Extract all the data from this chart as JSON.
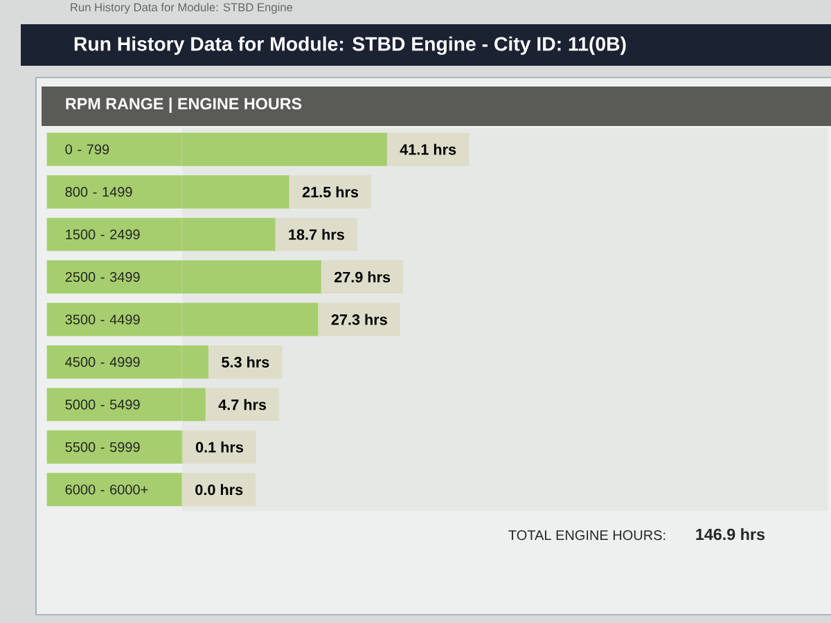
{
  "chart_data": {
    "type": "bar",
    "orientation": "horizontal",
    "title": "Run History Data for Module: STBD Engine - City ID: 11(0B)",
    "subtitle": "RPM RANGE | ENGINE HOURS",
    "categories": [
      "0 - 799",
      "800 - 1499",
      "1500 - 2499",
      "2500 - 3499",
      "3500 - 4499",
      "4500 - 4999",
      "5000 - 5499",
      "5500 - 5999",
      "6000 - 6000+"
    ],
    "values": [
      41.1,
      21.5,
      18.7,
      27.9,
      27.3,
      5.3,
      4.7,
      0.1,
      0.0
    ],
    "value_labels": [
      "41.1 hrs",
      "21.5 hrs",
      "18.7 hrs",
      "27.9 hrs",
      "27.3 hrs",
      "5.3 hrs",
      "4.7 hrs",
      "0.1 hrs",
      "0.0 hrs"
    ],
    "color": "#a6ce6e",
    "tick_labels": "y",
    "annotations": [
      "Run History Data for Module: STBD Engine",
      "TOTAL ENGINE HOURS:",
      "146.9 hrs"
    ]
  }
}
